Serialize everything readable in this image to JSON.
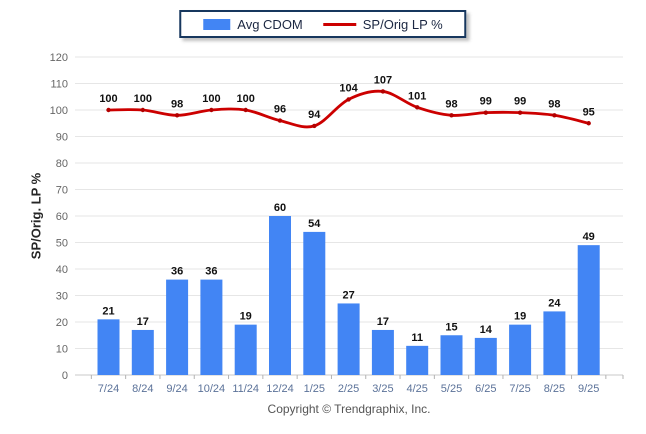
{
  "legend": {
    "series1_label": "Avg CDOM",
    "series2_label": "SP/Orig LP %"
  },
  "y_axis_title": "SP/Orig. LP %",
  "footer": "Copyright © Trendgraphix, Inc.",
  "colors": {
    "bar": "#4285F4",
    "line": "#CC0000",
    "line_marker": "#B30000",
    "grid": "#E6E6E6",
    "axis_baseline": "#C9C9C9",
    "tick": "#B3B3B3",
    "value_label": "#111111",
    "x_tick_label": "#5B7299",
    "y_tick_label": "#666666"
  },
  "chart_data": {
    "type": "bar",
    "title": "",
    "xlabel": "",
    "ylabel": "SP/Orig. LP %",
    "ylim": [
      0,
      120
    ],
    "ytick_step": 10,
    "grid": true,
    "legend_position": "top-center",
    "data_labels": true,
    "categories": [
      "7/24",
      "8/24",
      "9/24",
      "10/24",
      "11/24",
      "12/24",
      "1/25",
      "2/25",
      "3/25",
      "4/25",
      "5/25",
      "6/25",
      "7/25",
      "8/25",
      "9/25"
    ],
    "series": [
      {
        "name": "Avg CDOM",
        "type": "bar",
        "color": "#4285F4",
        "values": [
          21,
          17,
          36,
          36,
          19,
          60,
          54,
          27,
          17,
          11,
          15,
          14,
          19,
          24,
          49
        ]
      },
      {
        "name": "SP/Orig LP %",
        "type": "line",
        "color": "#CC0000",
        "values": [
          100,
          100,
          98,
          100,
          100,
          96,
          94,
          104,
          107,
          101,
          98,
          99,
          99,
          98,
          95
        ]
      }
    ]
  }
}
